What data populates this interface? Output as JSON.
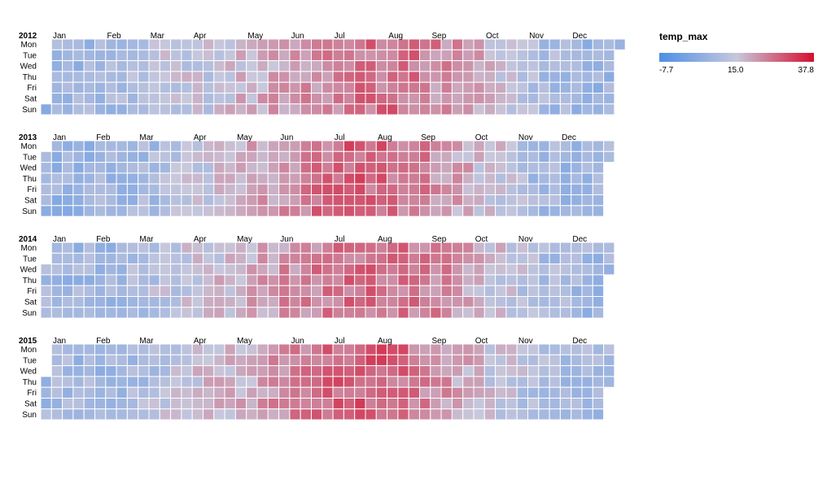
{
  "chart_data": {
    "type": "heatmap",
    "title": "",
    "color_field": "temp_max",
    "color_scale": {
      "min": -7.7,
      "mid": 15.0,
      "max": 37.8,
      "low_color": "#4c8fe6",
      "mid_color": "#c8c8dc",
      "high_color": "#d60d2d"
    },
    "legend": {
      "title": "temp_max",
      "ticks": [
        "-7.7",
        "15.0",
        "37.8"
      ],
      "placement": "top-right"
    },
    "day_labels": [
      "Mon",
      "Tue",
      "Wed",
      "Thu",
      "Fri",
      "Sat",
      "Sun"
    ],
    "month_labels": [
      "Jan",
      "Feb",
      "Mar",
      "Apr",
      "May",
      "Jun",
      "Jul",
      "Aug",
      "Sep",
      "Oct",
      "Nov",
      "Dec"
    ],
    "years": [
      {
        "year": "2012",
        "first_weekday": 6,
        "leap": true,
        "monthly_mean_temp_max": [
          7.5,
          9.0,
          13.5,
          14.0,
          18.5,
          20.5,
          25.5,
          26.0,
          21.5,
          15.5,
          10.0,
          7.0
        ]
      },
      {
        "year": "2013",
        "first_weekday": 1,
        "leap": false,
        "monthly_mean_temp_max": [
          6.5,
          8.0,
          10.0,
          14.5,
          19.0,
          23.0,
          28.0,
          26.0,
          21.5,
          15.5,
          9.5,
          7.5
        ]
      },
      {
        "year": "2014",
        "first_weekday": 2,
        "leap": false,
        "monthly_mean_temp_max": [
          8.0,
          8.5,
          12.5,
          15.0,
          19.5,
          23.0,
          26.0,
          25.5,
          23.0,
          16.0,
          11.0,
          8.0
        ]
      },
      {
        "year": "2015",
        "first_weekday": 3,
        "leap": false,
        "monthly_mean_temp_max": [
          8.5,
          8.0,
          12.0,
          16.0,
          19.5,
          24.0,
          28.5,
          27.0,
          21.0,
          14.5,
          11.5,
          9.0
        ]
      }
    ]
  }
}
